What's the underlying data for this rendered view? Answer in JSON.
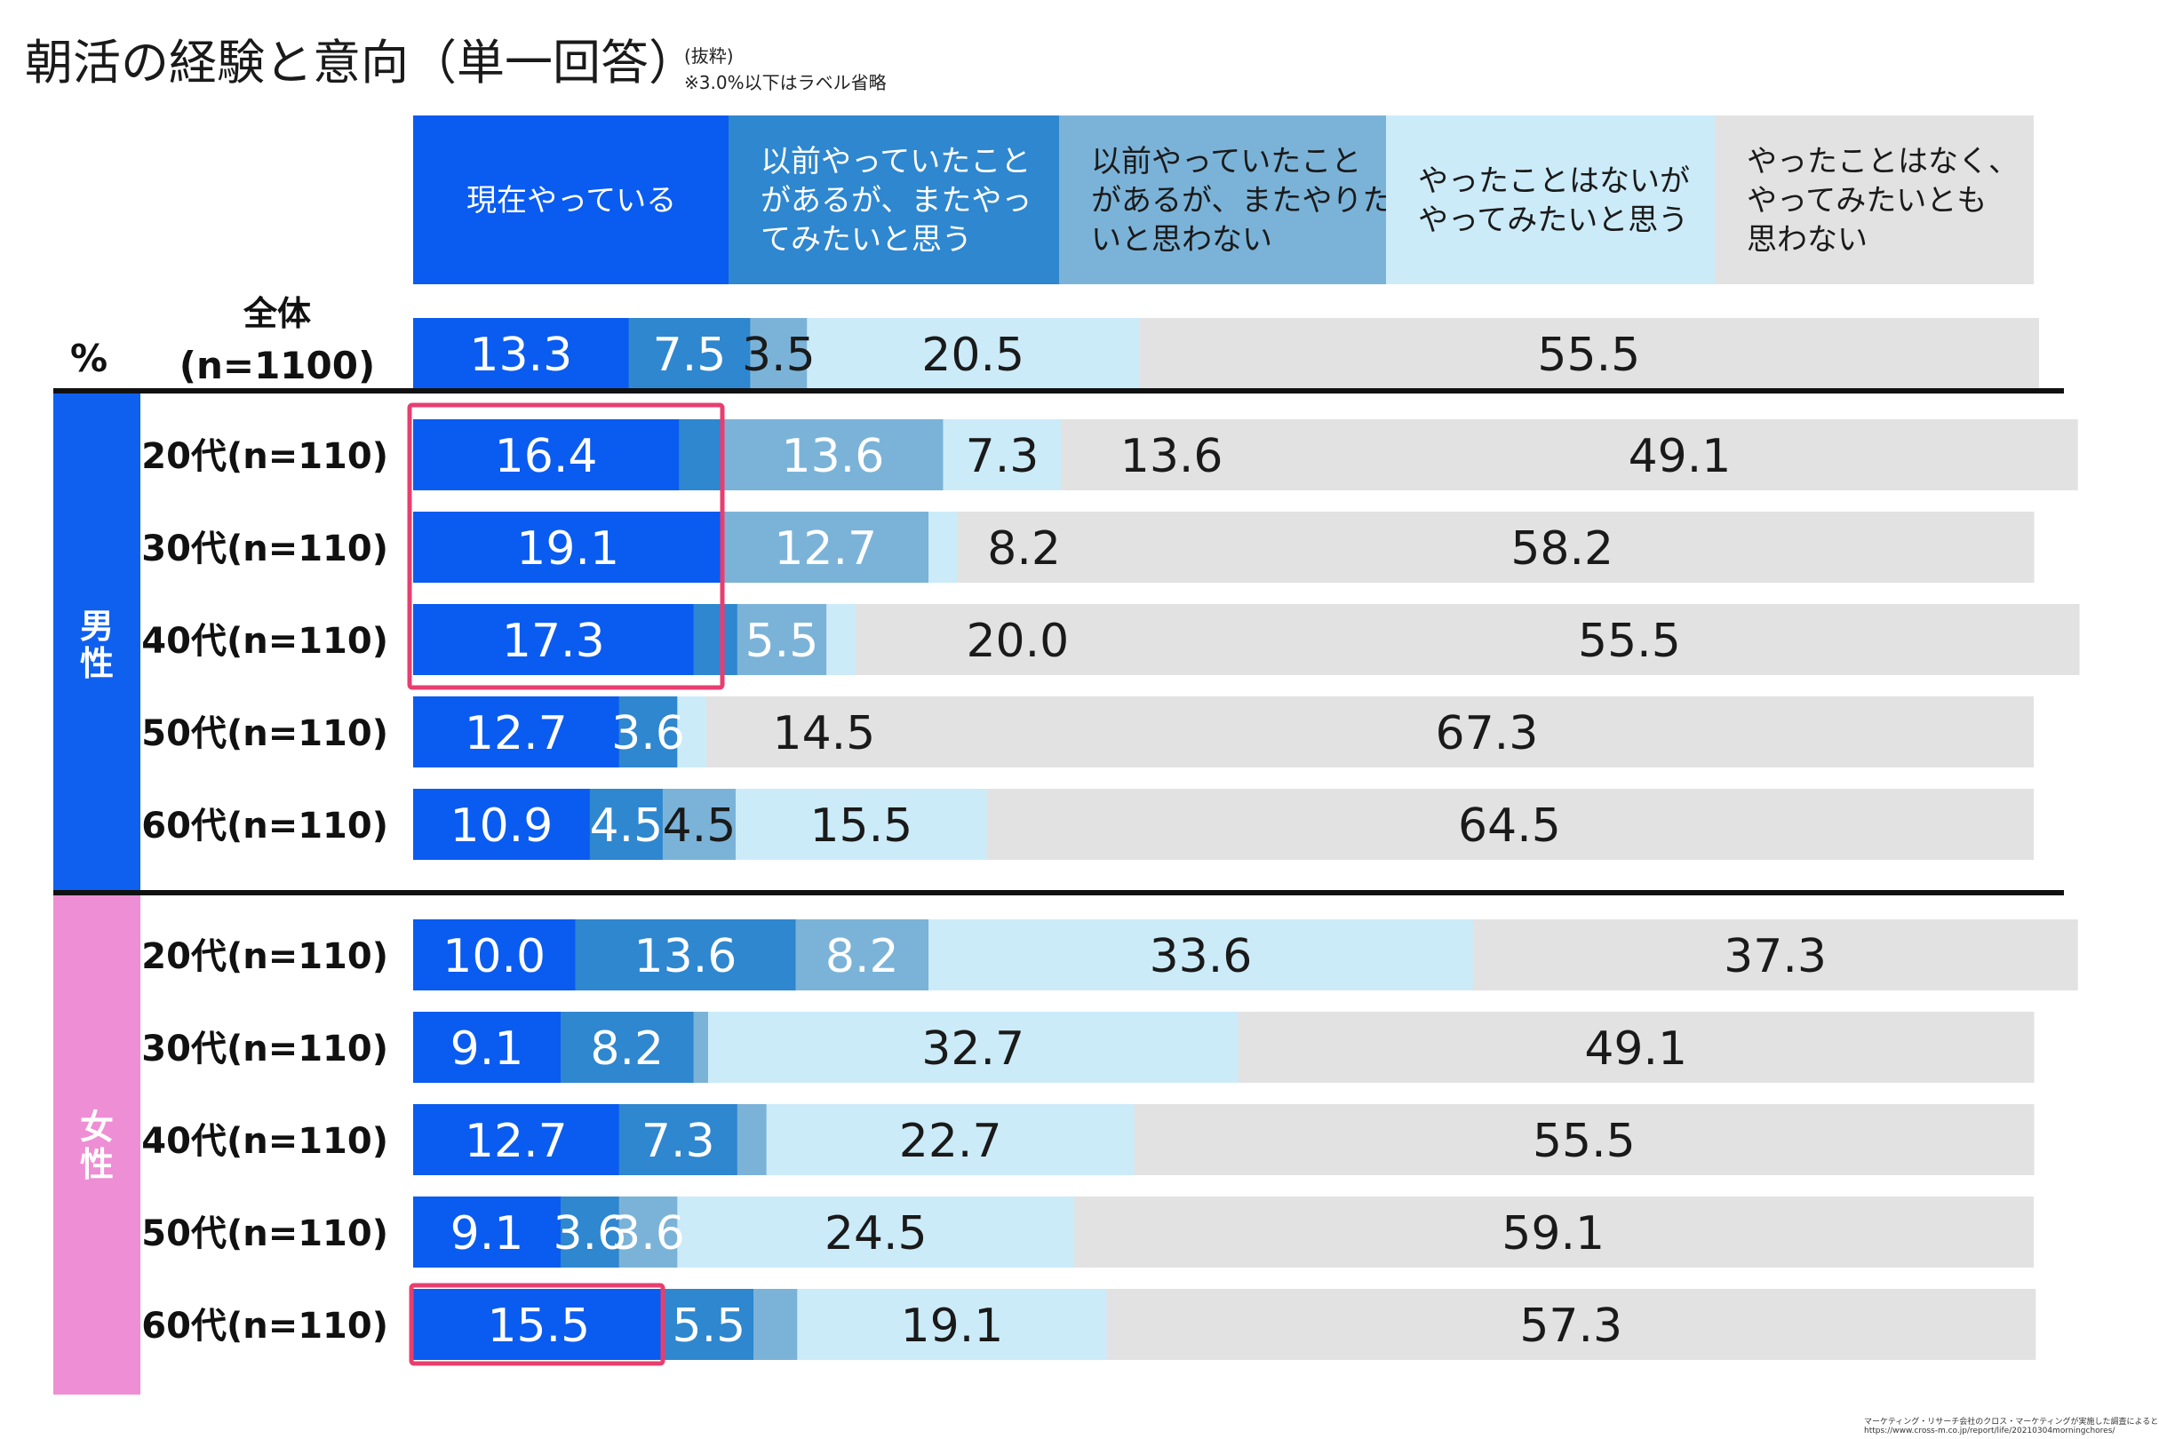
{
  "title": "朝活の経験と意向（単一回答）",
  "notes": [
    "(抜粋)",
    "※3.0%以下はラベル省略"
  ],
  "unit_label": "%",
  "source": [
    "マーケティング・リサーチ会社のクロス・マーケティングが実施した調査によると…",
    "https://www.cross-m.co.jp/report/life/20210304morningchores/"
  ],
  "colors": {
    "c1": "#0A5BF0",
    "c2": "#2E87CF",
    "c3": "#7BB3D8",
    "c4": "#CCEBF8",
    "c5": "#E2E2E2",
    "male": "#1060F0",
    "female": "#EE8ED4",
    "highlight": "#E83E6F"
  },
  "groups": [
    {
      "name": "男性"
    },
    {
      "name": "女性"
    }
  ],
  "chart_data": {
    "type": "bar",
    "stacked": true,
    "orientation": "horizontal",
    "value_label_threshold": 3.0,
    "categories": [
      "全体(n=1100)",
      "20代(n=110)",
      "30代(n=110)",
      "40代(n=110)",
      "50代(n=110)",
      "60代(n=110)",
      "20代(n=110)",
      "30代(n=110)",
      "40代(n=110)",
      "50代(n=110)",
      "60代(n=110)"
    ],
    "category_group": [
      "",
      "男性",
      "男性",
      "男性",
      "男性",
      "男性",
      "女性",
      "女性",
      "女性",
      "女性",
      "女性"
    ],
    "highlighted": [
      [
        1,
        0
      ],
      [
        2,
        0
      ],
      [
        3,
        0
      ],
      [
        10,
        0
      ]
    ],
    "series": [
      {
        "name": "現在やっている",
        "values": [
          13.3,
          16.4,
          19.1,
          17.3,
          12.7,
          10.9,
          10.0,
          9.1,
          12.7,
          9.1,
          15.5
        ],
        "labels": [
          "13.3",
          "16.4",
          "19.1",
          "17.3",
          "12.7",
          "10.9",
          "10.0",
          "9.1",
          "12.7",
          "9.1",
          "15.5"
        ]
      },
      {
        "name": "以前やっていたことがあるが、またやってみたいと思う",
        "values": [
          7.5,
          2.7,
          0.0,
          2.7,
          3.6,
          4.5,
          13.6,
          8.2,
          7.3,
          3.6,
          5.5
        ],
        "labels": [
          "7.5",
          "",
          "",
          "",
          "3.6",
          "4.5",
          "13.6",
          "8.2",
          "7.3",
          "3.6",
          "5.5"
        ]
      },
      {
        "name": "以前やっていたことがあるが、またやりたいと思わない",
        "values": [
          3.5,
          13.6,
          12.7,
          5.5,
          0.0,
          4.5,
          8.2,
          0.9,
          1.8,
          3.6,
          2.7
        ],
        "labels": [
          "3.5",
          "13.6",
          "12.7",
          "5.5",
          "",
          "4.5",
          "8.2",
          "",
          "",
          "3.6",
          ""
        ]
      },
      {
        "name": "やったことはないがやってみたいと思う",
        "values": [
          20.5,
          7.3,
          1.8,
          1.8,
          1.8,
          15.5,
          33.6,
          32.7,
          22.7,
          24.5,
          19.1
        ],
        "labels": [
          "20.5",
          "7.3",
          "",
          "",
          "",
          "15.5",
          "33.6",
          "32.7",
          "22.7",
          "24.5",
          "19.1"
        ]
      },
      {
        "name": "やったことはなく、やってみたいとも思わない",
        "values": [
          55.5,
          13.6,
          8.2,
          20.0,
          14.5,
          64.5,
          37.3,
          49.1,
          55.5,
          59.1,
          57.3
        ],
        "labels": [
          "55.5",
          "13.6",
          "8.2",
          "20.0",
          "14.5",
          "64.5",
          "37.3",
          "49.1",
          "55.5",
          "59.1",
          "57.3"
        ]
      },
      {
        "name": "",
        "values": [
          0,
          49.1,
          58.2,
          55.5,
          67.3,
          0,
          0,
          0,
          0,
          0,
          0
        ],
        "labels": [
          "",
          "49.1",
          "58.2",
          "55.5",
          "67.3",
          "",
          "",
          "",
          "",
          "",
          ""
        ]
      }
    ],
    "xlim": [
      0,
      100
    ],
    "legend": "top"
  }
}
